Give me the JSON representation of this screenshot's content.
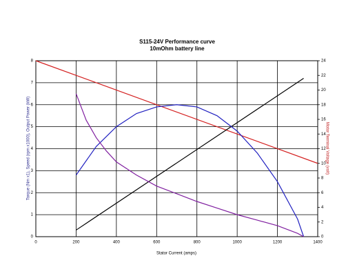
{
  "chart_data": {
    "type": "line",
    "title": "S115-24V Performance  curve",
    "subtitle": "10mOhm battery line",
    "x_label": "Stator Current (amps)",
    "y_label": "Torque (Nm x1), Speed (rpm x1000), Output Power (kW)",
    "y2_label": "Motor Terminal Voltage (volt)",
    "xlim": [
      0,
      1400
    ],
    "xticks": [
      0,
      200,
      400,
      600,
      800,
      1000,
      1200,
      1400
    ],
    "ylim": [
      0,
      8
    ],
    "yticks": [
      0,
      1,
      2,
      3,
      4,
      5,
      6,
      7,
      8
    ],
    "y2lim": [
      0,
      24
    ],
    "y2ticks": [
      0,
      2,
      4,
      6,
      8,
      10,
      12,
      14,
      16,
      18,
      20,
      22,
      24
    ],
    "grid": true,
    "series": [
      {
        "color": "#d42020",
        "axis": "y2",
        "x": [
          0,
          1400
        ],
        "values": [
          24,
          10
        ]
      },
      {
        "color": "#000000",
        "x": [
          200,
          1330
        ],
        "values": [
          0.3,
          7.2
        ]
      },
      {
        "color": "#2020c0",
        "x": [
          200,
          300,
          400,
          500,
          600,
          700,
          800,
          900,
          1000,
          1100,
          1200,
          1300,
          1330
        ],
        "values": [
          2.8,
          4.1,
          5.0,
          5.6,
          5.9,
          6.0,
          5.9,
          5.5,
          4.8,
          3.8,
          2.5,
          0.8,
          0
        ]
      },
      {
        "color": "#8020a0",
        "x": [
          200,
          250,
          300,
          350,
          400,
          500,
          600,
          700,
          800,
          900,
          1000,
          1100,
          1200,
          1300,
          1330
        ],
        "values": [
          6.5,
          5.3,
          4.5,
          3.9,
          3.4,
          2.8,
          2.3,
          1.95,
          1.6,
          1.3,
          1.0,
          0.75,
          0.5,
          0.15,
          0
        ]
      }
    ]
  }
}
